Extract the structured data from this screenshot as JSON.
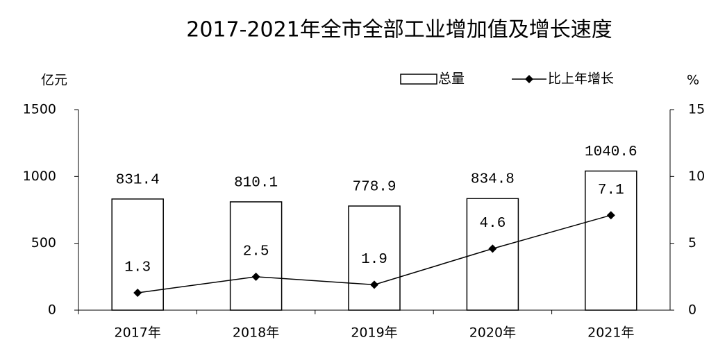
{
  "chart_data": {
    "type": "combo",
    "title": "2017-2021年全市全部工业增加值及增长速度",
    "y_label": "亿元",
    "y2_label": "%",
    "categories": [
      "2017年",
      "2018年",
      "2019年",
      "2020年",
      "2021年"
    ],
    "series": [
      {
        "name": "总量",
        "type": "bar",
        "color": "#ffffff",
        "values": [
          831.4,
          810.1,
          778.9,
          834.8,
          1040.6
        ]
      },
      {
        "name": "比上年增长",
        "type": "line",
        "axis": "y2",
        "color": "#000000",
        "values": [
          1.3,
          2.5,
          1.9,
          4.6,
          7.1
        ]
      }
    ],
    "ylim": [
      0,
      1500
    ],
    "yticks": [
      0,
      500,
      1000,
      1500
    ],
    "y2lim": [
      0,
      15
    ],
    "y2ticks": [
      0,
      5,
      10,
      15
    ],
    "legend": "top-right"
  }
}
